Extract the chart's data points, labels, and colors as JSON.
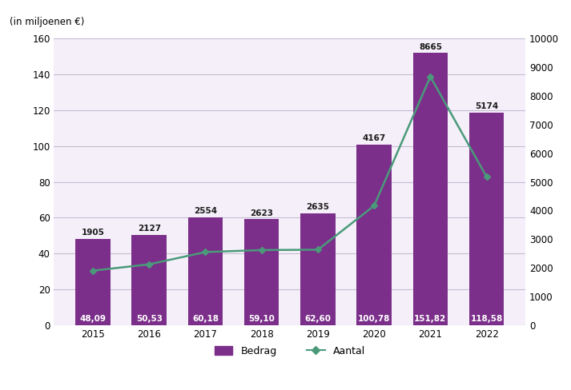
{
  "years": [
    2015,
    2016,
    2017,
    2018,
    2019,
    2020,
    2021,
    2022
  ],
  "bedrag": [
    48.09,
    50.53,
    60.18,
    59.1,
    62.6,
    100.78,
    151.82,
    118.58
  ],
  "bedrag_labels": [
    "48,09",
    "50,53",
    "60,18",
    "59,10",
    "62,60",
    "100,78",
    "151,82",
    "118,58"
  ],
  "aantal": [
    1905,
    2127,
    2554,
    2623,
    2635,
    4167,
    8665,
    5174
  ],
  "bar_color": "#7b2f8a",
  "line_color": "#4a9a7a",
  "background_color": "#f4eff8",
  "ylim_left": [
    0,
    160
  ],
  "ylim_right": [
    0,
    10000
  ],
  "yticks_left": [
    0,
    20,
    40,
    60,
    80,
    100,
    120,
    140,
    160
  ],
  "yticks_right": [
    0,
    1000,
    2000,
    3000,
    4000,
    5000,
    6000,
    7000,
    8000,
    9000,
    10000
  ],
  "ylabel_left": "(in miljoenen €)",
  "legend_bedrag": "Bedrag",
  "legend_aantal": "Aantal",
  "figsize": [
    7.13,
    4.88
  ],
  "dpi": 100
}
